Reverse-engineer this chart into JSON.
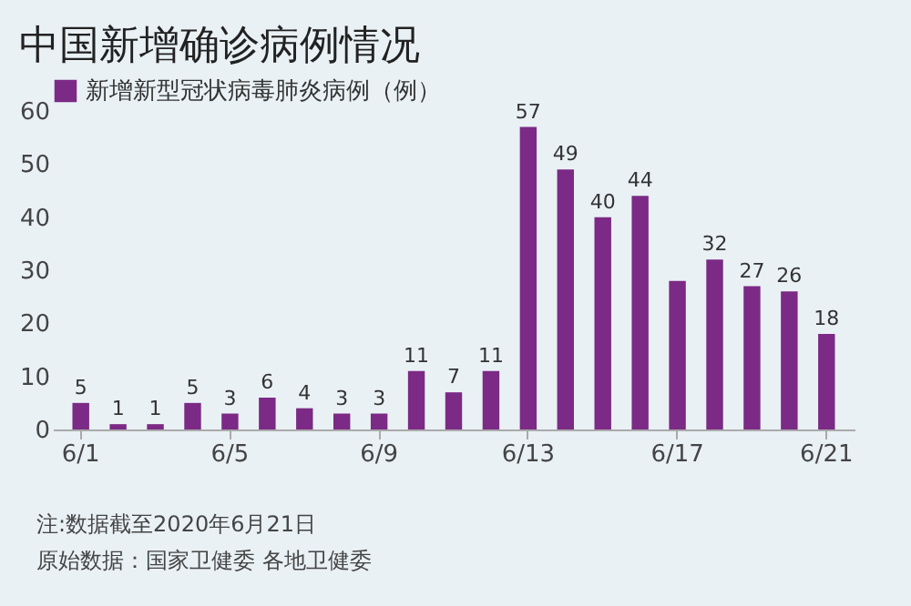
{
  "chart_data": {
    "type": "bar",
    "title": "中国新增确诊病例情况",
    "categories": [
      "6/1",
      null,
      null,
      null,
      "6/5",
      null,
      null,
      null,
      "6/9",
      null,
      null,
      null,
      "6/13",
      null,
      null,
      null,
      "6/17",
      null,
      null,
      null,
      "6/21"
    ],
    "series": [
      {
        "name": "新增新型冠状病毒肺炎病例（例）",
        "color": "#7b2a85",
        "values": [
          5,
          1,
          1,
          5,
          3,
          6,
          4,
          3,
          3,
          11,
          7,
          11,
          57,
          49,
          40,
          44,
          28,
          32,
          27,
          26,
          18
        ]
      }
    ],
    "value_labels": [
      "5",
      "1",
      "1",
      "5",
      "3",
      "6",
      "4",
      "3",
      "3",
      "11",
      "7",
      "11",
      "57",
      "49",
      "40",
      "44",
      null,
      "32",
      "27",
      "26",
      "18"
    ],
    "ylim": [
      0,
      60
    ],
    "yticks": [
      0,
      10,
      20,
      30,
      40,
      50,
      60
    ],
    "grid": false,
    "legend": "top left",
    "annotations": [
      "注:数据截至2020年6月21日",
      "原始数据：国家卫健委 各地卫健委"
    ]
  }
}
